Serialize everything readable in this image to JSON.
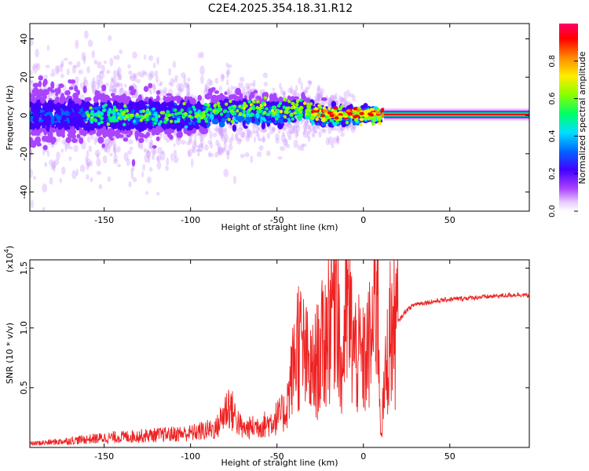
{
  "chart_data": [
    {
      "type": "heatmap",
      "title": "C2E4.2025.354.18.31.R12",
      "xlabel": "Height of straight line (km)",
      "ylabel": "Frequency (Hz)",
      "xlim": [
        -193,
        96
      ],
      "ylim": [
        -50,
        48
      ],
      "xticks": [
        -150,
        -100,
        -50,
        0,
        50
      ],
      "yticks": [
        -40,
        -20,
        0,
        20,
        40
      ],
      "colorbar": {
        "label": "Normalized spectral amplitude",
        "range": [
          0,
          1
        ],
        "ticks": [
          "0.0",
          "0.2",
          "0.4",
          "0.6",
          "0.8"
        ],
        "colors": [
          "#ffffff",
          "#cc88ff",
          "#8800ff",
          "#2200ff",
          "#00ccff",
          "#00ff88",
          "#88ff00",
          "#ffee00",
          "#ff8800",
          "#ff0000",
          "#ff0066"
        ]
      },
      "features": {
        "scatter_band_center_hz": 0,
        "scatter_band_halfwidth_hz_at_left": 15,
        "scatter_band_halfwidth_hz_at_-30km": 6,
        "coherent_line_start_km": 12,
        "coherent_line_freq_hz": 0.5
      }
    },
    {
      "type": "line",
      "xlabel": "Height of straight line (km)",
      "ylabel": "SNR (10 * v/v)",
      "y_multiplier_label": "(x10",
      "y_multiplier_exp": "4",
      "y_multiplier_close": ")",
      "xlim": [
        -193,
        96
      ],
      "ylim": [
        0,
        1.57
      ],
      "xticks": [
        -150,
        -100,
        -50,
        0,
        50
      ],
      "yticks": [
        0.5,
        1.0,
        1.5
      ],
      "ytick_labels": [
        "0.5",
        "1.0",
        "1.5"
      ],
      "line_color": "#ee2222",
      "series": [
        {
          "name": "SNR",
          "x": [
            -193,
            -175,
            -150,
            -125,
            -100,
            -85,
            -78,
            -70,
            -55,
            -45,
            -38,
            -30,
            -22,
            -15,
            -13,
            -10,
            -5,
            0,
            5,
            8,
            10,
            15,
            20,
            25,
            30,
            40,
            50,
            60,
            70,
            80,
            90,
            96
          ],
          "y": [
            0.03,
            0.05,
            0.08,
            0.1,
            0.12,
            0.16,
            0.36,
            0.15,
            0.2,
            0.3,
            0.9,
            0.6,
            0.9,
            1.55,
            0.5,
            1.2,
            0.8,
            0.7,
            0.9,
            1.5,
            0.1,
            0.95,
            1.05,
            1.15,
            1.2,
            1.22,
            1.24,
            1.25,
            1.26,
            1.27,
            1.28,
            1.27
          ]
        }
      ]
    }
  ]
}
